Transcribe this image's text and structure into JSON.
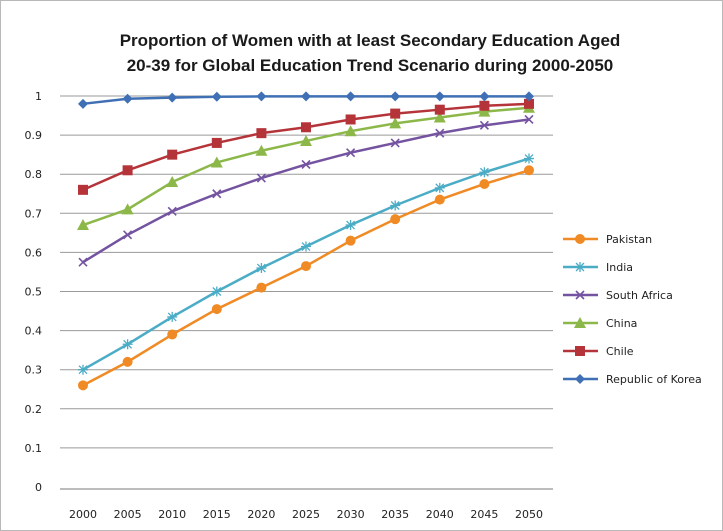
{
  "chart_data": {
    "type": "line",
    "title": "Proportion of Women with at least Secondary Education Aged",
    "title_line2": "20-39 for Global Education Trend Scenario during 2000-2050",
    "xlabel": "",
    "ylabel": "",
    "x": [
      "2000",
      "2005",
      "2010",
      "2015",
      "2020",
      "2025",
      "2030",
      "2035",
      "2040",
      "2045",
      "2050"
    ],
    "ylim": [
      0,
      1
    ],
    "yticks": [
      "0",
      "0.1",
      "0.2",
      "0.3",
      "0.4",
      "0.5",
      "0.6",
      "0.7",
      "0.8",
      "0.9",
      "1"
    ],
    "grid": "horizontal",
    "legend_position": "right",
    "series": [
      {
        "name": "Pakistan",
        "color": "#f08a24",
        "marker": "circle",
        "values": [
          0.26,
          0.32,
          0.39,
          0.455,
          0.51,
          0.565,
          0.63,
          0.685,
          0.735,
          0.775,
          0.81
        ]
      },
      {
        "name": "India",
        "color": "#4bacc6",
        "marker": "star",
        "values": [
          0.3,
          0.365,
          0.435,
          0.5,
          0.56,
          0.615,
          0.67,
          0.72,
          0.765,
          0.805,
          0.84
        ]
      },
      {
        "name": "South Africa",
        "color": "#7453a0",
        "marker": "x",
        "values": [
          0.575,
          0.645,
          0.705,
          0.75,
          0.79,
          0.825,
          0.855,
          0.88,
          0.905,
          0.925,
          0.94
        ]
      },
      {
        "name": "China",
        "color": "#8cb84a",
        "marker": "triangle",
        "values": [
          0.67,
          0.71,
          0.78,
          0.83,
          0.86,
          0.885,
          0.91,
          0.93,
          0.945,
          0.96,
          0.97
        ]
      },
      {
        "name": "Chile",
        "color": "#b5343a",
        "marker": "square",
        "values": [
          0.76,
          0.81,
          0.85,
          0.88,
          0.905,
          0.92,
          0.94,
          0.955,
          0.965,
          0.975,
          0.98
        ]
      },
      {
        "name": "Republic of Korea",
        "color": "#3f70b5",
        "marker": "diamond",
        "values": [
          0.98,
          0.993,
          0.996,
          0.998,
          0.999,
          0.999,
          0.999,
          0.999,
          0.999,
          0.999,
          0.999
        ]
      }
    ]
  }
}
